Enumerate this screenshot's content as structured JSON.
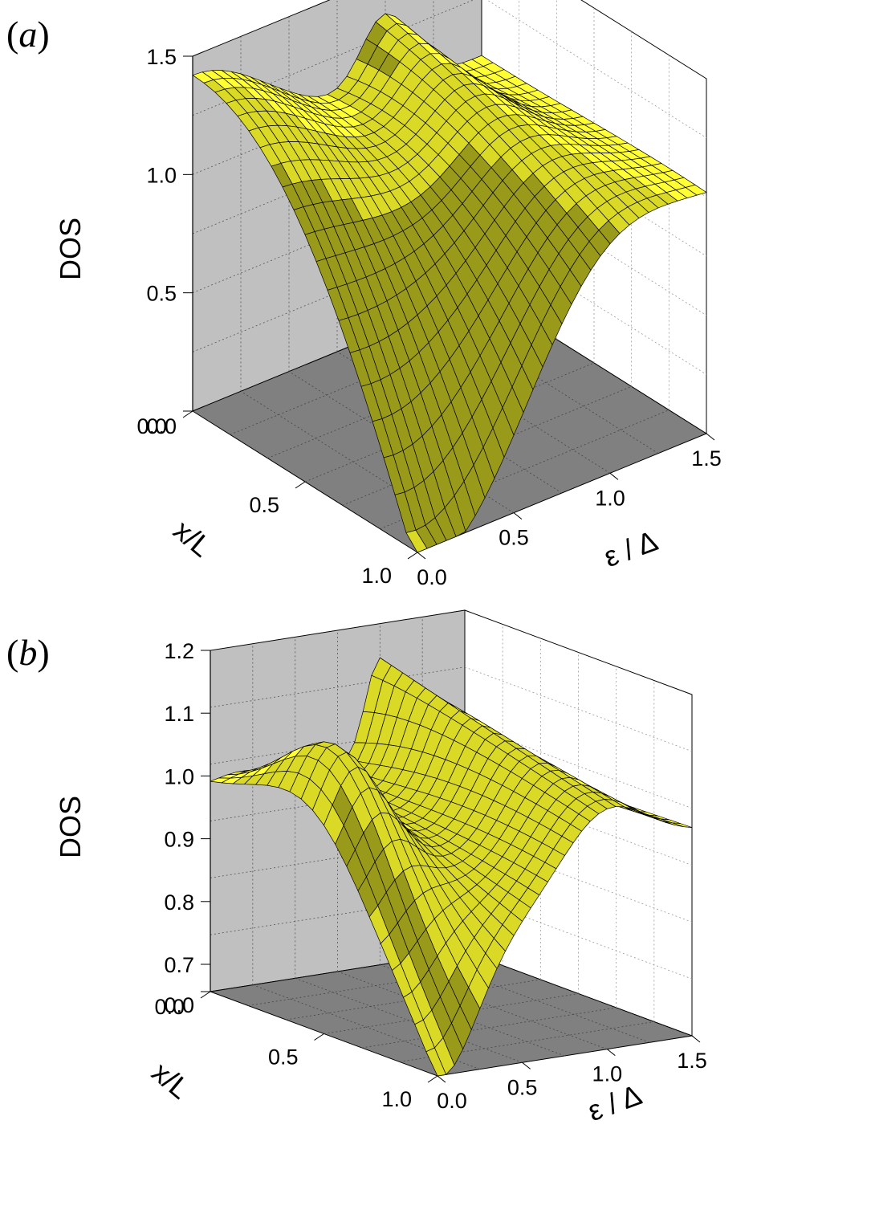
{
  "chart_data": [
    {
      "panel_label": "(a)",
      "panel_label_parts": [
        "(",
        "a",
        ")"
      ],
      "type": "surface",
      "xlabel": "x/L",
      "ylabel": "ε / Δ",
      "zlabel": "DOS",
      "x_range": [
        0.0,
        1.0
      ],
      "y_range": [
        0.0,
        1.5
      ],
      "z_range": [
        0.0,
        1.5
      ],
      "x_ticks": [
        "0.0",
        "0.5",
        "1.0"
      ],
      "y_ticks": [
        "0.0",
        "0.5",
        "1.0",
        "1.5"
      ],
      "z_ticks": [
        "0.0",
        "0.5",
        "1.0",
        "1.5"
      ],
      "grid": true,
      "surface_color": "#ffff33",
      "back_wall_color": "#c0c0c0",
      "floor_color": "#808080",
      "surface_description": {
        "dos_at_x0_eps0": 1.33,
        "dos_at_x1_eps0": 0.0,
        "dos_peak_eps": 1.0,
        "dos_peak_value": 1.33,
        "dos_high_energy": 1.0
      }
    },
    {
      "panel_label": "(b)",
      "panel_label_parts": [
        "(",
        "b",
        ")"
      ],
      "type": "surface",
      "xlabel": "x/L",
      "ylabel": "ε / Δ",
      "zlabel": "DOS",
      "x_range": [
        0.0,
        1.0
      ],
      "y_range": [
        0.0,
        1.5
      ],
      "z_range": [
        0.7,
        1.2
      ],
      "x_ticks": [
        "0.0",
        "0.5",
        "1.0"
      ],
      "y_ticks": [
        "0.0",
        "0.5",
        "1.0",
        "1.5"
      ],
      "z_ticks": [
        "0.0",
        "0.7",
        "0.8",
        "0.9",
        "1.0",
        "1.1",
        "1.2"
      ],
      "grid": true,
      "surface_color": "#ffff33",
      "back_wall_color": "#c0c0c0",
      "floor_color": "#808080",
      "surface_description": {
        "dos_at_x0_eps0": 1.0,
        "dos_min_x1_eps0": 0.72,
        "dos_peak_eps": 1.0,
        "dos_peak_value": 1.15,
        "dos_high_energy": 1.0
      }
    }
  ]
}
